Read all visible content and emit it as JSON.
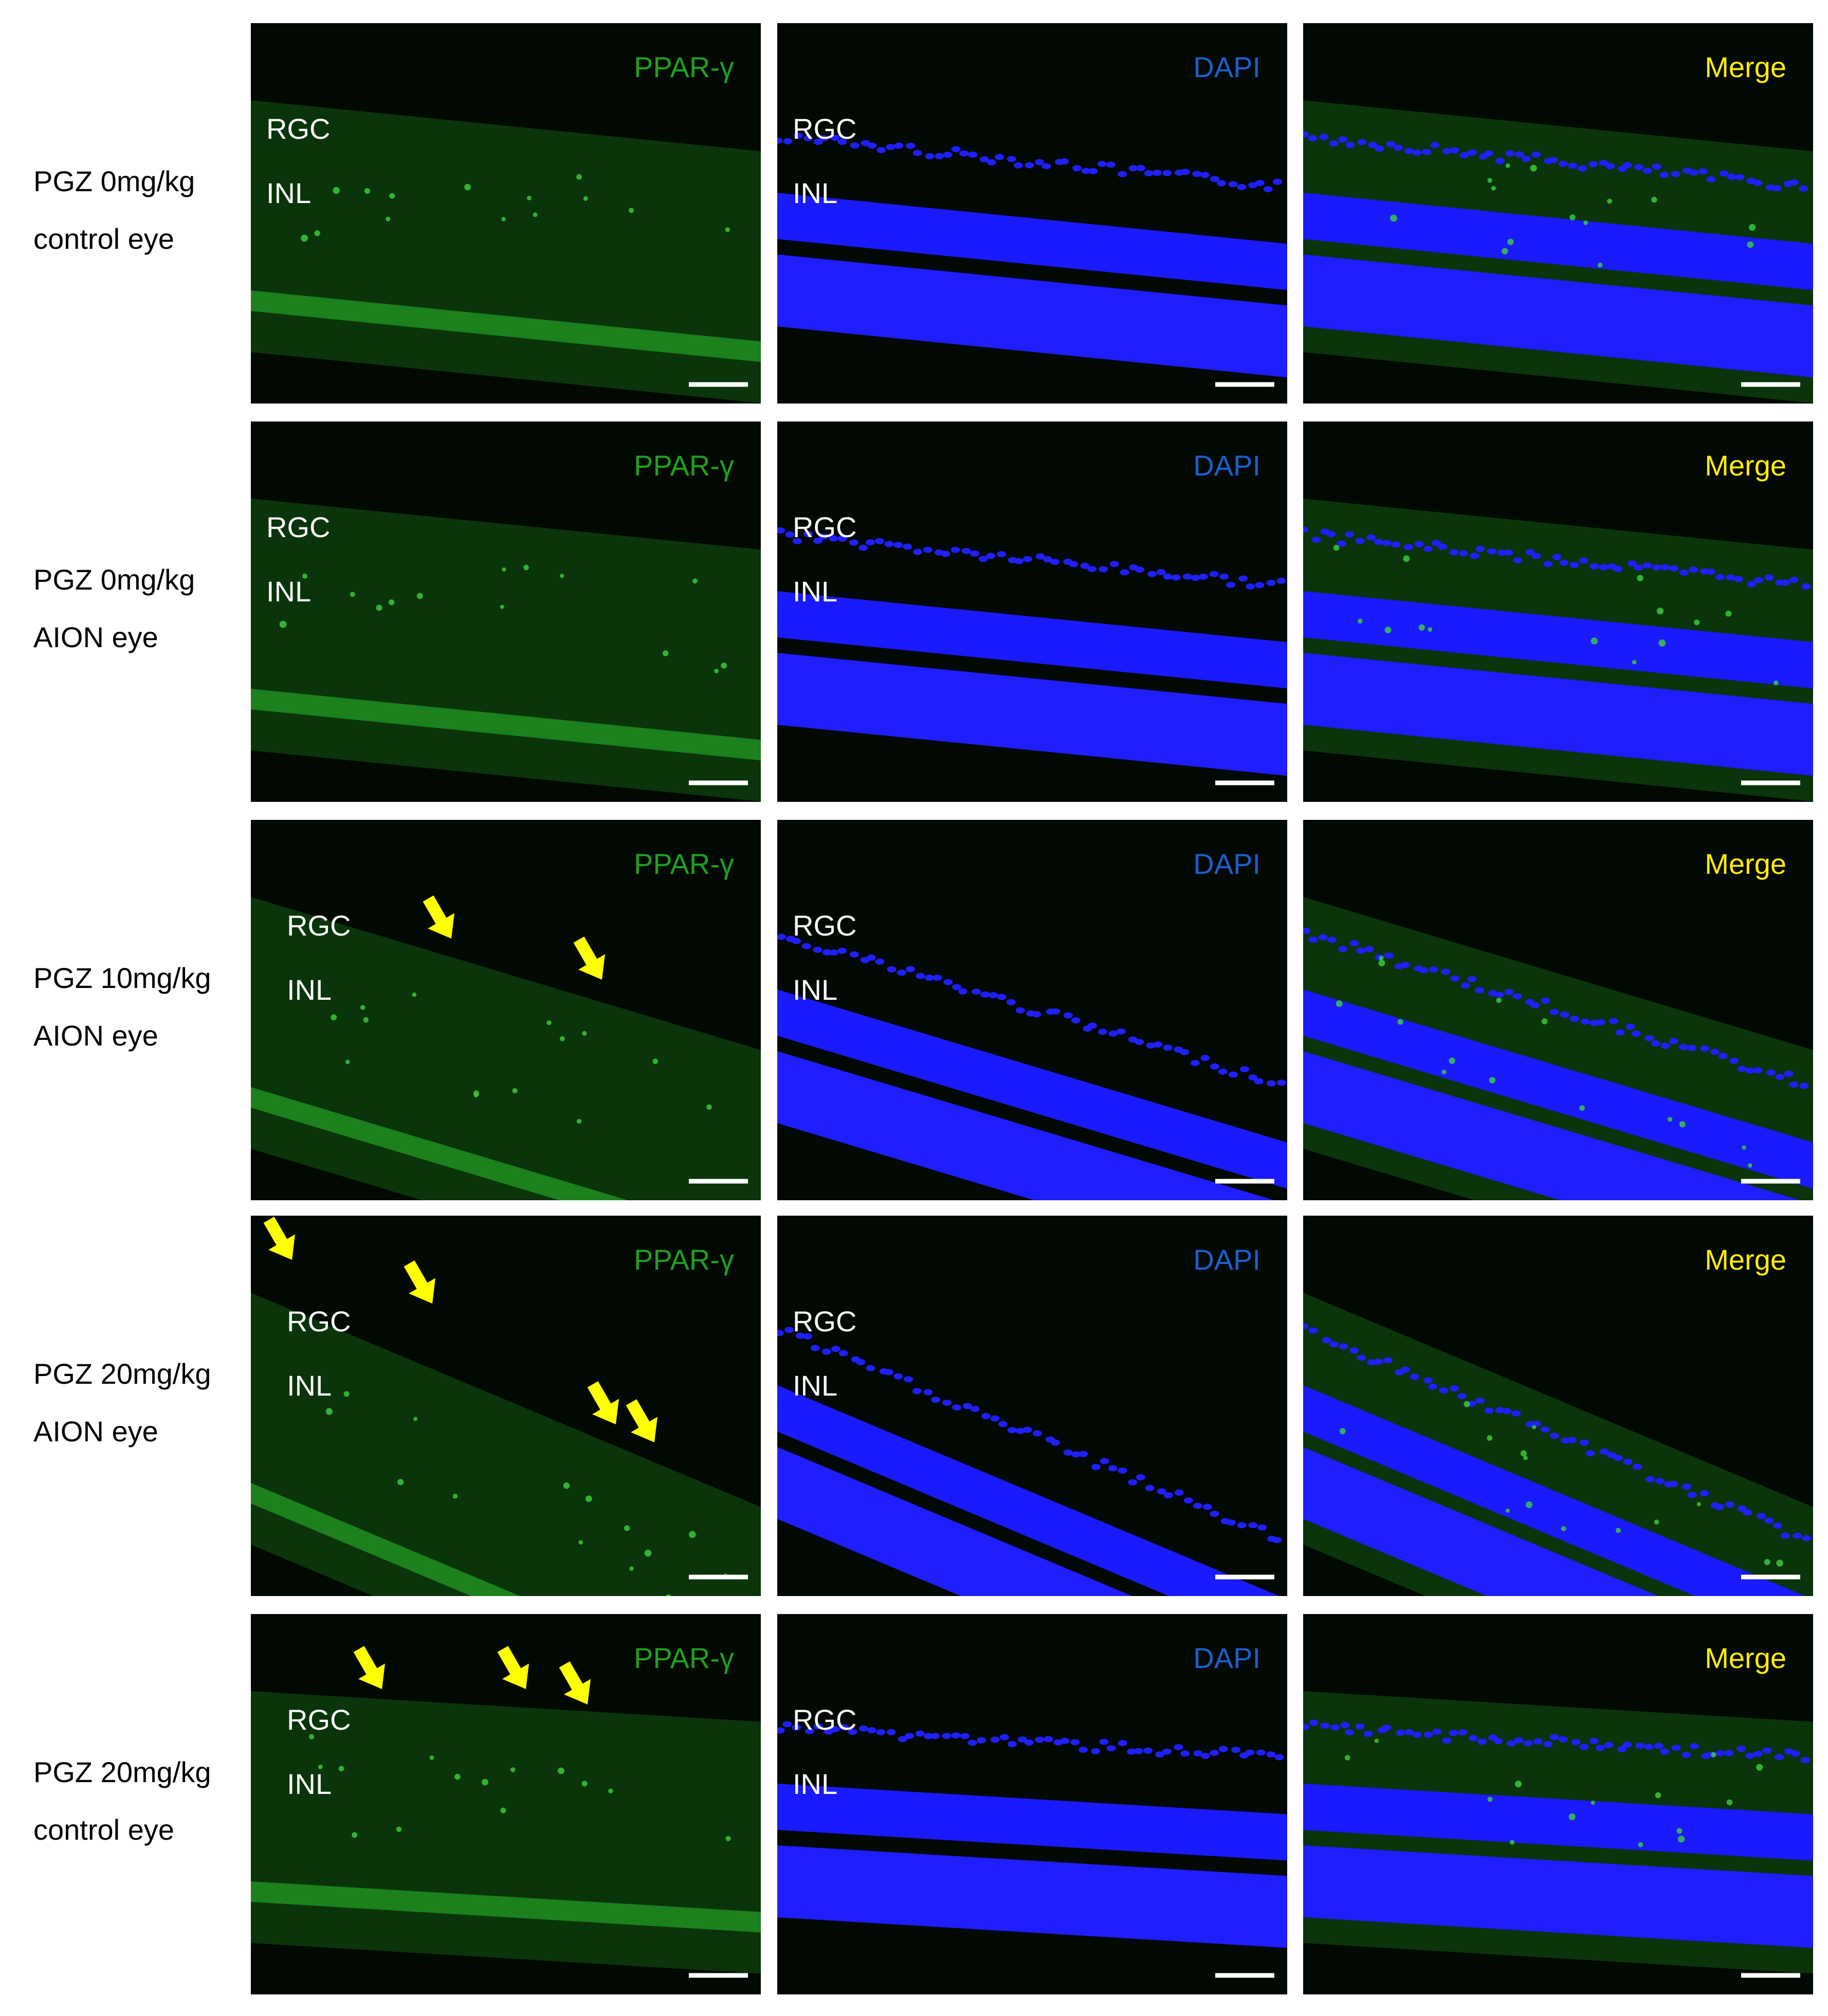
{
  "rows": [
    {
      "label": [
        "PGZ 0mg/kg",
        "control eye"
      ],
      "panels": [
        {
          "channel": "PPAR-γ",
          "layers": [
            "RGC",
            "INL"
          ]
        },
        {
          "channel": "DAPI",
          "layers": [
            "RGC",
            "INL"
          ]
        },
        {
          "channel": "Merge"
        }
      ]
    },
    {
      "label": [
        "PGZ 0mg/kg",
        "AION eye"
      ],
      "panels": [
        {
          "channel": "PPAR-γ",
          "layers": [
            "RGC",
            "INL"
          ]
        },
        {
          "channel": "DAPI",
          "layers": [
            "RGC",
            "INL"
          ]
        },
        {
          "channel": "Merge"
        }
      ]
    },
    {
      "label": [
        "PGZ 10mg/kg",
        "AION eye"
      ],
      "panels": [
        {
          "channel": "PPAR-γ",
          "layers": [
            "RGC",
            "INL"
          ]
        },
        {
          "channel": "DAPI",
          "layers": [
            "RGC",
            "INL"
          ]
        },
        {
          "channel": "Merge"
        }
      ]
    },
    {
      "label": [
        "PGZ 20mg/kg",
        "AION eye"
      ],
      "panels": [
        {
          "channel": "PPAR-γ",
          "layers": [
            "RGC",
            "INL"
          ]
        },
        {
          "channel": "DAPI",
          "layers": [
            "RGC",
            "INL"
          ]
        },
        {
          "channel": "Merge"
        }
      ]
    },
    {
      "label": [
        "PGZ 20mg/kg",
        "control eye"
      ],
      "panels": [
        {
          "channel": "PPAR-γ",
          "layers": [
            "RGC",
            "INL"
          ]
        },
        {
          "channel": "DAPI",
          "layers": [
            "RGC",
            "INL"
          ]
        },
        {
          "channel": "Merge"
        }
      ]
    }
  ]
}
